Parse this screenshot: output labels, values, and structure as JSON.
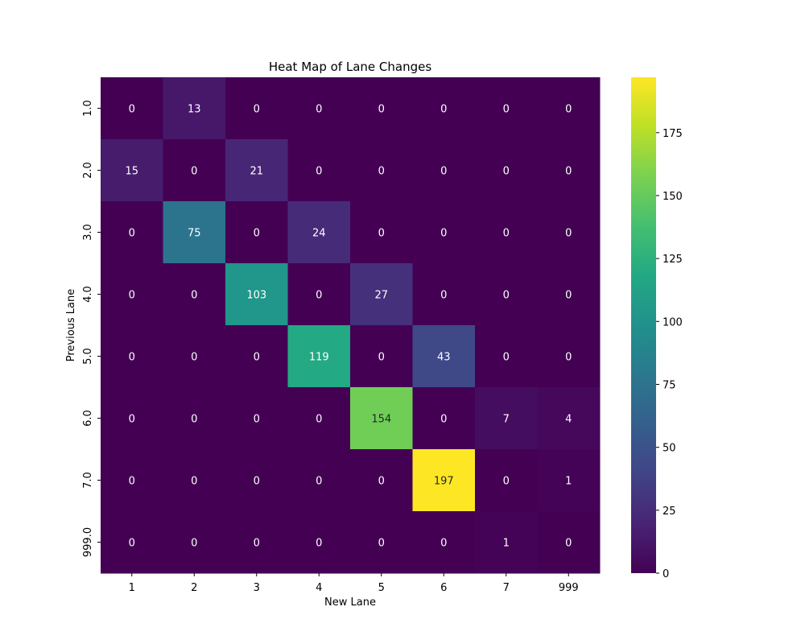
{
  "chart_data": {
    "type": "heatmap",
    "title": "Heat Map of Lane Changes",
    "xlabel": "New Lane",
    "ylabel": "Previous Lane",
    "x_categories": [
      "1",
      "2",
      "3",
      "4",
      "5",
      "6",
      "7",
      "999"
    ],
    "y_categories": [
      "1.0",
      "2.0",
      "3.0",
      "4.0",
      "5.0",
      "6.0",
      "7.0",
      "999.0"
    ],
    "values": [
      [
        0,
        13,
        0,
        0,
        0,
        0,
        0,
        0
      ],
      [
        15,
        0,
        21,
        0,
        0,
        0,
        0,
        0
      ],
      [
        0,
        75,
        0,
        24,
        0,
        0,
        0,
        0
      ],
      [
        0,
        0,
        103,
        0,
        27,
        0,
        0,
        0
      ],
      [
        0,
        0,
        0,
        119,
        0,
        43,
        0,
        0
      ],
      [
        0,
        0,
        0,
        0,
        154,
        0,
        7,
        4
      ],
      [
        0,
        0,
        0,
        0,
        0,
        197,
        0,
        1
      ],
      [
        0,
        0,
        0,
        0,
        0,
        0,
        1,
        0
      ]
    ],
    "colormap": "viridis",
    "vmin": 0,
    "vmax": 197,
    "colorbar_ticks": [
      0,
      25,
      50,
      75,
      100,
      125,
      150,
      175
    ],
    "annotated": true,
    "grid": false
  }
}
